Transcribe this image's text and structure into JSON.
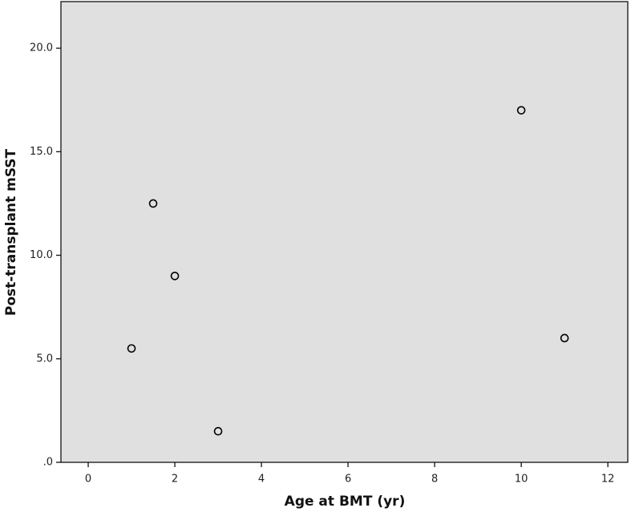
{
  "chart_data": {
    "type": "scatter",
    "x_label": "Age at BMT (yr)",
    "y_label": "Post-transplant mSST",
    "x": [
      1,
      1.5,
      2,
      3,
      10,
      11
    ],
    "values": [
      5.5,
      12.5,
      9,
      1.5,
      17,
      6
    ],
    "color": "#000000",
    "background": "#e0e0e0",
    "xlim": [
      -0.63,
      12.46
    ],
    "xticks": [
      0,
      2,
      4,
      6,
      8,
      10,
      12
    ],
    "ylim": [
      0,
      22.25
    ],
    "yticks": [
      {
        "value": 0,
        "label": ".0"
      },
      {
        "value": 5,
        "label": "5.0"
      },
      {
        "value": 10,
        "label": "10.0"
      },
      {
        "value": 15,
        "label": "15.0"
      },
      {
        "value": 20,
        "label": "20.0"
      }
    ]
  }
}
